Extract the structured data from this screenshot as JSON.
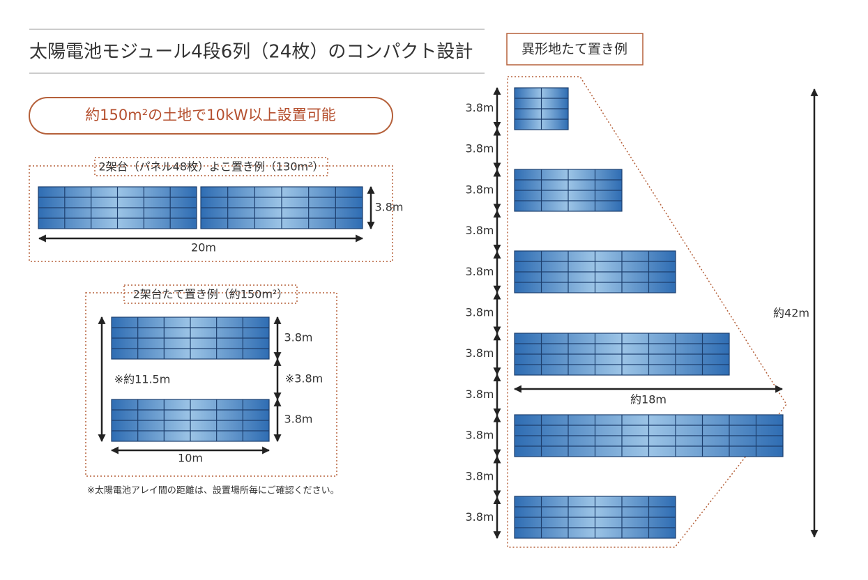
{
  "title": "太陽電池モジュール4段6列（24枚）のコンパクト設計",
  "badge": "約150m²の土地で10kW以上設置可能",
  "horizontal_example": {
    "label": "2架台（パネル48枚）よこ置き例（130m²）",
    "height": "3.8m",
    "width": "20m"
  },
  "vertical_example": {
    "label": "2架台たて置き例（約150m²）",
    "panel_height_1": "3.8m",
    "gap": "※3.8m",
    "panel_height_2": "3.8m",
    "total_height": "※約11.5m",
    "width": "10m"
  },
  "note": "※太陽電池アレイ間の距離は、設置場所毎にご確認ください。",
  "irregular_example": {
    "label": "異形地たて置き例",
    "row_pitches": [
      "3.8m",
      "3.8m",
      "3.8m",
      "3.8m",
      "3.8m",
      "3.8m",
      "3.8m",
      "3.8m",
      "3.8m",
      "3.8m",
      "3.8m"
    ],
    "width": "約18m",
    "height": "約42m"
  }
}
